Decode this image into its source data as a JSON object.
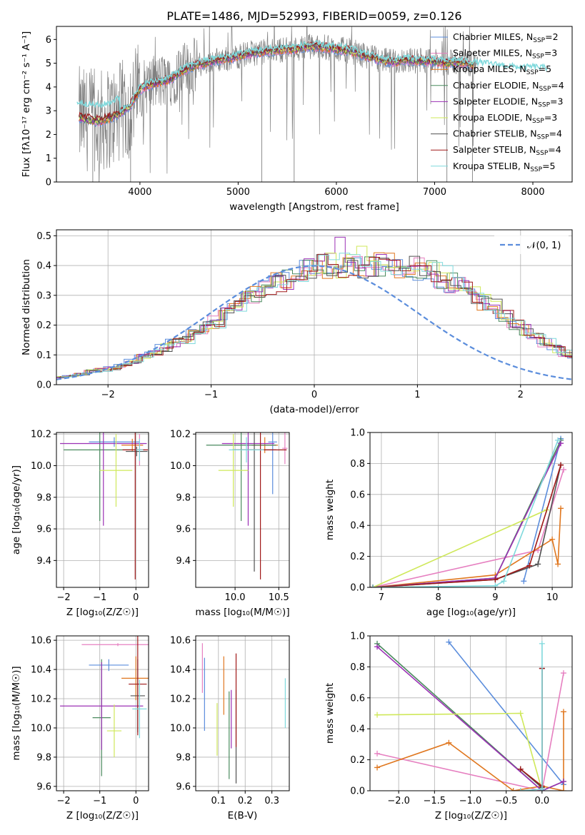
{
  "figure": {
    "title": "PLATE=1486, MJD=52993, FIBERID=0059, z=0.126",
    "colors": {
      "chabrier_miles": "#5b8ddc",
      "salpeter_miles": "#e67fc0",
      "kroupa_miles": "#e0771f",
      "chabrier_elodie": "#4a8a5e",
      "salpeter_elodie": "#9b30b5",
      "kroupa_elodie": "#cfe85a",
      "chabrier_stelib": "#505050",
      "salpeter_stelib": "#a01818",
      "kroupa_stelib": "#7fd9dc",
      "data": "#808080",
      "grid": "#b0b0b0"
    }
  },
  "chart_data": [
    {
      "id": "spectrum",
      "type": "line",
      "xlabel": "wavelength [Angstrom, rest frame]",
      "ylabel": "Flux [fλ10⁻¹⁷ erg cm⁻² s⁻¹ A⁻¹]",
      "xlim": [
        3150,
        8400
      ],
      "ylim": [
        0,
        6.55
      ],
      "xticks": [
        4000,
        5000,
        6000,
        7000,
        8000
      ],
      "yticks": [
        0,
        1,
        2,
        3,
        4,
        5,
        6
      ],
      "grid": false,
      "legend_position": "top-right",
      "legend": [
        {
          "label": "Chabrier MILES, N",
          "sub": "SSP",
          "suffix": "=2",
          "color_key": "chabrier_miles"
        },
        {
          "label": "Salpeter MILES, N",
          "sub": "SSP",
          "suffix": "=3",
          "color_key": "salpeter_miles"
        },
        {
          "label": "Kroupa MILES, N",
          "sub": "SSP",
          "suffix": "=5",
          "color_key": "kroupa_miles"
        },
        {
          "label": "Chabrier ELODIE, N",
          "sub": "SSP",
          "suffix": "=4",
          "color_key": "chabrier_elodie"
        },
        {
          "label": "Salpeter ELODIE, N",
          "sub": "SSP",
          "suffix": "=3",
          "color_key": "salpeter_elodie"
        },
        {
          "label": "Kroupa ELODIE, N",
          "sub": "SSP",
          "suffix": "=3",
          "color_key": "kroupa_elodie"
        },
        {
          "label": "Chabrier STELIB, N",
          "sub": "SSP",
          "suffix": "=4",
          "color_key": "chabrier_stelib"
        },
        {
          "label": "Salpeter STELIB, N",
          "sub": "SSP",
          "suffix": "=4",
          "color_key": "salpeter_stelib"
        },
        {
          "label": "Kroupa STELIB, N",
          "sub": "SSP",
          "suffix": "=5",
          "color_key": "kroupa_stelib"
        }
      ],
      "continuum": {
        "x": [
          3380,
          3500,
          3600,
          3700,
          3800,
          3900,
          4000,
          4100,
          4200,
          4300,
          4400,
          4500,
          4600,
          4700,
          4800,
          4900,
          5000,
          5100,
          5200,
          5300,
          5400,
          5500,
          5600,
          5700,
          5800,
          5900,
          6000,
          6100,
          6200,
          6300,
          6400,
          6500,
          6600,
          6700,
          6800,
          6900,
          7000,
          7100,
          7200,
          7300,
          7400
        ],
        "y": [
          2.7,
          2.6,
          2.55,
          2.7,
          2.9,
          3.2,
          3.9,
          4.1,
          4.2,
          4.3,
          4.6,
          4.8,
          4.95,
          5.05,
          5.15,
          5.2,
          5.3,
          5.4,
          5.45,
          5.5,
          5.55,
          5.6,
          5.6,
          5.7,
          5.7,
          5.65,
          5.6,
          5.55,
          5.45,
          5.3,
          5.2,
          5.1,
          5.05,
          5.15,
          5.1,
          5.1,
          5.05,
          5.0,
          5.05,
          5.0,
          4.95
        ]
      },
      "kroupa_stelib_tail": {
        "x": [
          7400,
          7500,
          7600,
          7700,
          7800,
          7900,
          8000,
          8100,
          8150
        ],
        "y": [
          4.95,
          4.9,
          4.85,
          4.8,
          4.75,
          4.7,
          4.75,
          4.7,
          4.7
        ]
      }
    },
    {
      "id": "residuals",
      "type": "bar",
      "xlabel": "(data-model)/error",
      "ylabel": "Normed distribution",
      "xlim": [
        -2.5,
        2.5
      ],
      "ylim": [
        0,
        0.52
      ],
      "xticks": [
        -2,
        -1,
        0,
        1,
        2
      ],
      "yticks": [
        0.0,
        0.1,
        0.2,
        0.3,
        0.4,
        0.5
      ],
      "grid": true,
      "legend_position": "top-right",
      "legend_label": "𝒩(0, 1)",
      "bin_width": 0.1,
      "bin_start": -2.5,
      "base": [
        0.025,
        0.03,
        0.035,
        0.045,
        0.05,
        0.055,
        0.065,
        0.08,
        0.095,
        0.11,
        0.125,
        0.14,
        0.15,
        0.17,
        0.19,
        0.21,
        0.235,
        0.26,
        0.285,
        0.305,
        0.33,
        0.345,
        0.36,
        0.375,
        0.385,
        0.395,
        0.4,
        0.4,
        0.395,
        0.39,
        0.395,
        0.405,
        0.4,
        0.395,
        0.39,
        0.385,
        0.375,
        0.36,
        0.345,
        0.325,
        0.3,
        0.28,
        0.26,
        0.23,
        0.205,
        0.185,
        0.16,
        0.14,
        0.12,
        0.105,
        0.09,
        0.08,
        0.07,
        0.06,
        0.05,
        0.045,
        0.04,
        0.035,
        0.03,
        0.025
      ]
    },
    {
      "id": "age_vs_z",
      "type": "scatter",
      "xlabel": "Z [log₁₀(Z/Z☉)]",
      "ylabel": "age  [log₁₀(age/yr)]",
      "xlim": [
        -2.2,
        0.35
      ],
      "ylim": [
        9.23,
        10.21
      ],
      "xticks": [
        -2,
        -1,
        0
      ],
      "yticks": [
        9.4,
        9.6,
        9.8,
        10.0,
        10.2
      ],
      "grid": true,
      "points": [
        {
          "color_key": "chabrier_miles",
          "x": -0.6,
          "y": 10.15,
          "xerr": 0.7,
          "yerr": 0.03
        },
        {
          "color_key": "salpeter_miles",
          "x": 0.1,
          "y": 10.1,
          "xerr": 0.15,
          "yerr": 0.1
        },
        {
          "color_key": "kroupa_miles",
          "x": -0.1,
          "y": 10.13,
          "xerr": 0.3,
          "yerr": 0.04
        },
        {
          "color_key": "chabrier_elodie",
          "x": -1.0,
          "y": 10.1,
          "xerr": 1.0,
          "yerr": 0.45
        },
        {
          "color_key": "salpeter_elodie",
          "x": -0.9,
          "y": 10.14,
          "xerr": 1.2,
          "yerr": 0.52
        },
        {
          "color_key": "kroupa_elodie",
          "x": -0.55,
          "y": 9.97,
          "xerr": 0.45,
          "yerr": 0.23
        },
        {
          "color_key": "chabrier_stelib",
          "x": 0.02,
          "y": 10.09,
          "xerr": 0.3,
          "yerr": 0.03
        },
        {
          "color_key": "salpeter_stelib",
          "x": -0.02,
          "y": 10.1,
          "xerr": 0.35,
          "yerr": 0.82
        },
        {
          "color_key": "kroupa_stelib",
          "x": 0.1,
          "y": 10.1,
          "xerr": 0.1,
          "yerr": 0.07
        }
      ]
    },
    {
      "id": "age_vs_mass",
      "type": "scatter",
      "xlabel": "mass [log₁₀(M/M☉)]",
      "ylabel": "",
      "xlim": [
        9.55,
        10.62
      ],
      "ylim": [
        9.23,
        10.21
      ],
      "xticks": [
        10.0,
        10.5
      ],
      "yticks": [
        9.4,
        9.6,
        9.8,
        10.0,
        10.2
      ],
      "grid": true,
      "points": [
        {
          "color_key": "chabrier_miles",
          "x": 10.43,
          "y": 10.15,
          "xerr": 0.05,
          "yerr": 0.33
        },
        {
          "color_key": "salpeter_miles",
          "x": 10.57,
          "y": 10.11,
          "xerr": 0.03,
          "yerr": 0.1
        },
        {
          "color_key": "kroupa_miles",
          "x": 10.34,
          "y": 10.13,
          "xerr": 0.15,
          "yerr": 0.05
        },
        {
          "color_key": "chabrier_elodie",
          "x": 10.07,
          "y": 10.13,
          "xerr": 0.4,
          "yerr": 0.48
        },
        {
          "color_key": "salpeter_elodie",
          "x": 10.15,
          "y": 10.14,
          "xerr": 0.3,
          "yerr": 0.52
        },
        {
          "color_key": "kroupa_elodie",
          "x": 9.98,
          "y": 9.97,
          "xerr": 0.17,
          "yerr": 0.23
        },
        {
          "color_key": "chabrier_stelib",
          "x": 10.22,
          "y": 10.1,
          "xerr": 0.25,
          "yerr": 0.77
        },
        {
          "color_key": "salpeter_stelib",
          "x": 10.29,
          "y": 10.1,
          "xerr": 0.3,
          "yerr": 0.82
        },
        {
          "color_key": "kroupa_stelib",
          "x": 10.13,
          "y": 10.1,
          "xerr": 0.2,
          "yerr": 0.08
        }
      ]
    },
    {
      "id": "weight_vs_age",
      "type": "line",
      "xlabel": "age  [log₁₀(age/yr)]",
      "ylabel": "mass weight",
      "xlim": [
        6.8,
        10.35
      ],
      "ylim": [
        0,
        1.0
      ],
      "xticks": [
        7,
        8,
        9,
        10
      ],
      "yticks": [
        0.0,
        0.2,
        0.4,
        0.6,
        0.8,
        1.0
      ],
      "grid": true,
      "series": [
        {
          "color_key": "chabrier_miles",
          "x": [
            9.5,
            10.15
          ],
          "y": [
            0.04,
            0.96
          ]
        },
        {
          "color_key": "salpeter_miles",
          "x": [
            6.85,
            9.75,
            10.2
          ],
          "y": [
            0.0,
            0.24,
            0.76
          ]
        },
        {
          "color_key": "kroupa_miles",
          "x": [
            6.85,
            9.0,
            10.0,
            10.1,
            10.15
          ],
          "y": [
            0.0,
            0.08,
            0.31,
            0.15,
            0.51
          ]
        },
        {
          "color_key": "chabrier_elodie",
          "x": [
            6.85,
            9.0,
            10.15
          ],
          "y": [
            0.0,
            0.06,
            0.95
          ]
        },
        {
          "color_key": "salpeter_elodie",
          "x": [
            6.85,
            9.0,
            10.15
          ],
          "y": [
            0.0,
            0.06,
            0.93
          ]
        },
        {
          "color_key": "kroupa_elodie",
          "x": [
            6.85,
            9.9
          ],
          "y": [
            0.0,
            0.5
          ]
        },
        {
          "color_key": "chabrier_stelib",
          "x": [
            6.85,
            9.0,
            9.75,
            10.15
          ],
          "y": [
            0.0,
            0.05,
            0.15,
            0.79
          ]
        },
        {
          "color_key": "salpeter_stelib",
          "x": [
            6.85,
            9.0,
            9.6,
            10.15
          ],
          "y": [
            0.0,
            0.05,
            0.14,
            0.79
          ]
        },
        {
          "color_key": "kroupa_stelib",
          "x": [
            6.85,
            9.0,
            9.15,
            10.1
          ],
          "y": [
            0.0,
            0.01,
            0.04,
            0.95
          ]
        }
      ]
    },
    {
      "id": "mass_vs_z",
      "type": "scatter",
      "xlabel": "Z [log₁₀(Z/Z☉)]",
      "ylabel": "mass [log₁₀(M/M☉)]",
      "xlim": [
        -2.2,
        0.35
      ],
      "ylim": [
        9.57,
        10.63
      ],
      "xticks": [
        -2,
        -1,
        0
      ],
      "yticks": [
        9.6,
        9.8,
        10.0,
        10.2,
        10.4,
        10.6
      ],
      "grid": true,
      "points": [
        {
          "color_key": "chabrier_miles",
          "x": -0.75,
          "y": 10.43,
          "xerr": 0.55,
          "yerr": 0.04
        },
        {
          "color_key": "salpeter_miles",
          "x": -0.5,
          "y": 10.57,
          "xerr": 1.0,
          "yerr": 0.01
        },
        {
          "color_key": "kroupa_miles",
          "x": 0.0,
          "y": 10.34,
          "xerr": 0.4,
          "yerr": 0.15
        },
        {
          "color_key": "chabrier_elodie",
          "x": -0.95,
          "y": 10.07,
          "xerr": 0.25,
          "yerr": 0.4
        },
        {
          "color_key": "salpeter_elodie",
          "x": -0.95,
          "y": 10.15,
          "xerr": 1.15,
          "yerr": 0.3
        },
        {
          "color_key": "kroupa_elodie",
          "x": -0.6,
          "y": 9.98,
          "xerr": 0.2,
          "yerr": 0.18
        },
        {
          "color_key": "chabrier_stelib",
          "x": 0.05,
          "y": 10.22,
          "xerr": 0.2,
          "yerr": 0.25
        },
        {
          "color_key": "salpeter_stelib",
          "x": 0.05,
          "y": 10.3,
          "xerr": 0.25,
          "yerr": 0.35
        },
        {
          "color_key": "kroupa_stelib",
          "x": 0.1,
          "y": 10.13,
          "xerr": 0.2,
          "yerr": 0.2
        }
      ]
    },
    {
      "id": "mass_vs_ebv",
      "type": "scatter",
      "xlabel": "E(B-V)",
      "ylabel": "",
      "xlim": [
        0.015,
        0.365
      ],
      "ylim": [
        9.57,
        10.63
      ],
      "xticks": [
        0.1,
        0.2,
        0.3
      ],
      "yticks": [
        9.6,
        9.8,
        10.0,
        10.2,
        10.4,
        10.6
      ],
      "grid": true,
      "points": [
        {
          "color_key": "chabrier_miles",
          "x": 0.048,
          "y": 10.23,
          "xerr": 0.0,
          "yerr": 0.25
        },
        {
          "color_key": "salpeter_miles",
          "x": 0.04,
          "y": 10.41,
          "xerr": 0.0,
          "yerr": 0.17
        },
        {
          "color_key": "kroupa_miles",
          "x": 0.12,
          "y": 10.29,
          "xerr": 0.0,
          "yerr": 0.2
        },
        {
          "color_key": "chabrier_elodie",
          "x": 0.14,
          "y": 9.95,
          "xerr": 0.0,
          "yerr": 0.3
        },
        {
          "color_key": "salpeter_elodie",
          "x": 0.148,
          "y": 10.06,
          "xerr": 0.0,
          "yerr": 0.2
        },
        {
          "color_key": "kroupa_elodie",
          "x": 0.095,
          "y": 9.99,
          "xerr": 0.0,
          "yerr": 0.18
        },
        {
          "color_key": "chabrier_stelib",
          "x": 0.166,
          "y": 9.94,
          "xerr": 0.0,
          "yerr": 0.32
        },
        {
          "color_key": "salpeter_stelib",
          "x": 0.166,
          "y": 10.19,
          "xerr": 0.0,
          "yerr": 0.32
        },
        {
          "color_key": "kroupa_stelib",
          "x": 0.35,
          "y": 10.17,
          "xerr": 0.0,
          "yerr": 0.17
        }
      ]
    },
    {
      "id": "weight_vs_z",
      "type": "line",
      "xlabel": "Z [log₁₀(Z/Z☉)]",
      "ylabel": "mass weight",
      "xlim": [
        -2.4,
        0.42
      ],
      "ylim": [
        0,
        1.0
      ],
      "xticks": [
        -2.0,
        -1.5,
        -1.0,
        -0.5,
        0.0
      ],
      "yticks": [
        0.0,
        0.2,
        0.4,
        0.6,
        0.8,
        1.0
      ],
      "grid": true,
      "series": [
        {
          "color_key": "chabrier_miles",
          "x": [
            -1.3,
            0.3
          ],
          "y": [
            0.96,
            0.04
          ]
        },
        {
          "color_key": "salpeter_miles",
          "x": [
            -2.3,
            0.0,
            0.3
          ],
          "y": [
            0.24,
            0.0,
            0.76
          ]
        },
        {
          "color_key": "kroupa_miles",
          "x": [
            -2.3,
            -1.3,
            -0.4,
            0.0,
            0.3,
            0.3
          ],
          "y": [
            0.15,
            0.31,
            0.0,
            0.03,
            0.0,
            0.51
          ]
        },
        {
          "color_key": "chabrier_elodie",
          "x": [
            -2.3,
            0.0,
            0.3
          ],
          "y": [
            0.95,
            0.0,
            0.06
          ]
        },
        {
          "color_key": "salpeter_elodie",
          "x": [
            -2.3,
            0.0,
            0.3
          ],
          "y": [
            0.93,
            0.0,
            0.06
          ]
        },
        {
          "color_key": "kroupa_elodie",
          "x": [
            -2.3,
            -0.3,
            0.0
          ],
          "y": [
            0.49,
            0.5,
            0.0
          ]
        },
        {
          "color_key": "chabrier_stelib",
          "x": [
            -0.3,
            0.0,
            0.0
          ],
          "y": [
            0.14,
            0.02,
            0.79
          ]
        },
        {
          "color_key": "salpeter_stelib",
          "x": [
            -0.3,
            0.0,
            0.0
          ],
          "y": [
            0.14,
            0.03,
            0.79
          ]
        },
        {
          "color_key": "kroupa_stelib",
          "x": [
            -0.3,
            0.0,
            0.0,
            0.0
          ],
          "y": [
            0.0,
            0.01,
            0.95,
            0.0
          ]
        }
      ]
    }
  ]
}
